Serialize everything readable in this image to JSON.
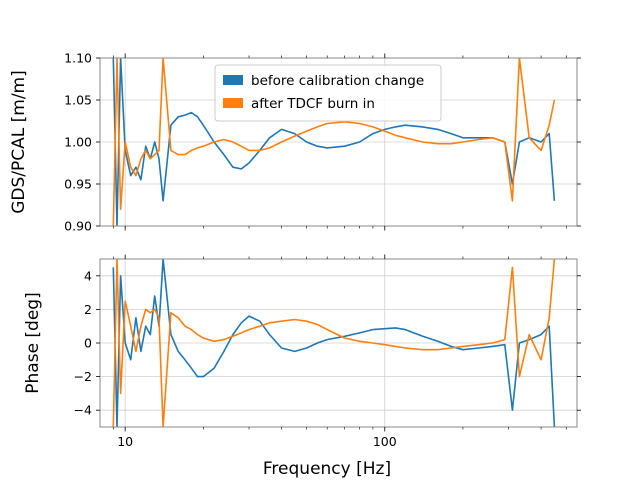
{
  "chart_data": [
    {
      "type": "line",
      "xlabel": "",
      "ylabel": "GDS/PCAL [m/m]",
      "xscale": "log",
      "xlim": [
        8,
        550
      ],
      "ylim": [
        0.9,
        1.1
      ],
      "yticks": [
        0.9,
        0.95,
        1.0,
        1.05,
        1.1
      ],
      "ytick_labels": [
        "0.90",
        "0.95",
        "1.00",
        "1.05",
        "1.10"
      ],
      "grid": true,
      "legend": "top-center",
      "series": [
        {
          "name": "before calibration change",
          "color": "#1f77b4",
          "x": [
            9,
            9.3,
            9.6,
            10,
            10.5,
            11,
            11.5,
            12,
            12.5,
            13,
            13.5,
            14,
            15,
            16,
            17,
            18,
            19,
            20,
            22,
            24,
            26,
            28,
            30,
            33,
            36,
            40,
            45,
            50,
            55,
            60,
            70,
            80,
            90,
            100,
            110,
            120,
            140,
            160,
            180,
            200,
            230,
            260,
            290,
            310,
            330,
            360,
            400,
            430,
            450
          ],
          "y": [
            1.1,
            0.9,
            1.1,
            0.99,
            0.96,
            0.97,
            0.955,
            0.995,
            0.98,
            1.0,
            0.98,
            0.93,
            1.02,
            1.03,
            1.032,
            1.035,
            1.03,
            1.02,
            1.0,
            0.985,
            0.97,
            0.968,
            0.975,
            0.99,
            1.005,
            1.015,
            1.01,
            1.0,
            0.995,
            0.993,
            0.995,
            1.0,
            1.01,
            1.015,
            1.018,
            1.02,
            1.018,
            1.015,
            1.01,
            1.005,
            1.005,
            1.005,
            1.0,
            0.95,
            1.0,
            1.005,
            1.0,
            1.01,
            0.93
          ]
        },
        {
          "name": "after TDCF burn in",
          "color": "#ff7f0e",
          "x": [
            9,
            9.3,
            9.6,
            10,
            10.5,
            11,
            11.5,
            12,
            12.5,
            13,
            13.5,
            14,
            15,
            16,
            17,
            18,
            19,
            20,
            22,
            24,
            26,
            28,
            30,
            33,
            36,
            40,
            45,
            50,
            55,
            60,
            70,
            80,
            90,
            100,
            110,
            120,
            140,
            160,
            180,
            200,
            230,
            260,
            290,
            310,
            330,
            360,
            400,
            430,
            450
          ],
          "y": [
            0.9,
            1.1,
            0.92,
            1.0,
            0.97,
            0.96,
            0.98,
            0.99,
            0.98,
            0.985,
            0.99,
            1.1,
            0.99,
            0.985,
            0.985,
            0.99,
            0.993,
            0.995,
            1.0,
            1.003,
            1.0,
            0.995,
            0.99,
            0.99,
            0.993,
            1.0,
            1.007,
            1.013,
            1.018,
            1.022,
            1.024,
            1.022,
            1.018,
            1.013,
            1.008,
            1.005,
            1.0,
            0.998,
            0.998,
            1.0,
            1.003,
            1.005,
            1.0,
            0.93,
            1.1,
            1.005,
            0.99,
            1.02,
            1.05
          ]
        }
      ]
    },
    {
      "type": "line",
      "xlabel": "Frequency [Hz]",
      "ylabel": "Phase [deg]",
      "xscale": "log",
      "xlim": [
        8,
        550
      ],
      "ylim": [
        -5,
        5
      ],
      "xticks": [
        10,
        100
      ],
      "xtick_labels": [
        "10",
        "100"
      ],
      "yticks": [
        -4,
        -2,
        0,
        2,
        4
      ],
      "ytick_labels": [
        "−4",
        "−2",
        "0",
        "2",
        "4"
      ],
      "grid": true,
      "series": [
        {
          "name": "before calibration change",
          "color": "#1f77b4",
          "x": [
            9,
            9.3,
            9.6,
            10,
            10.5,
            11,
            11.5,
            12,
            12.5,
            13,
            13.5,
            14,
            15,
            16,
            17,
            18,
            19,
            20,
            22,
            24,
            26,
            28,
            30,
            33,
            36,
            40,
            45,
            50,
            55,
            60,
            70,
            80,
            90,
            100,
            110,
            120,
            140,
            160,
            180,
            200,
            230,
            260,
            290,
            310,
            330,
            360,
            400,
            430,
            450
          ],
          "y": [
            4.5,
            -5,
            4.0,
            0,
            -1.0,
            1.5,
            -0.5,
            1.0,
            0.5,
            2.8,
            1.0,
            5.0,
            0.5,
            -0.5,
            -1.0,
            -1.5,
            -2.0,
            -2.0,
            -1.5,
            -0.5,
            0.5,
            1.2,
            1.6,
            1.3,
            0.5,
            -0.3,
            -0.5,
            -0.3,
            0,
            0.2,
            0.4,
            0.6,
            0.8,
            0.85,
            0.9,
            0.8,
            0.4,
            0.1,
            -0.2,
            -0.4,
            -0.3,
            -0.2,
            -0.1,
            -4.0,
            0,
            0.2,
            0.5,
            1.0,
            -5.0
          ]
        },
        {
          "name": "after TDCF burn in",
          "color": "#ff7f0e",
          "x": [
            9,
            9.3,
            9.6,
            10,
            10.5,
            11,
            11.5,
            12,
            12.5,
            13,
            13.5,
            14,
            15,
            16,
            17,
            18,
            19,
            20,
            22,
            24,
            26,
            28,
            30,
            33,
            36,
            40,
            45,
            50,
            55,
            60,
            70,
            80,
            90,
            100,
            110,
            120,
            140,
            160,
            180,
            200,
            230,
            260,
            290,
            310,
            330,
            360,
            400,
            430,
            450
          ],
          "y": [
            -5,
            5.0,
            -3.0,
            2.5,
            1.0,
            -0.5,
            1.0,
            2.0,
            1.8,
            2.0,
            1.5,
            -5.0,
            1.8,
            1.5,
            1.0,
            0.8,
            0.5,
            0.3,
            0.1,
            0.2,
            0.4,
            0.6,
            0.8,
            1.0,
            1.2,
            1.3,
            1.4,
            1.3,
            1.1,
            0.8,
            0.3,
            0.1,
            0,
            -0.1,
            -0.2,
            -0.3,
            -0.4,
            -0.4,
            -0.3,
            -0.2,
            -0.1,
            0,
            0.2,
            4.5,
            -2.0,
            0.5,
            -1.0,
            1.5,
            5.0
          ]
        }
      ]
    }
  ]
}
